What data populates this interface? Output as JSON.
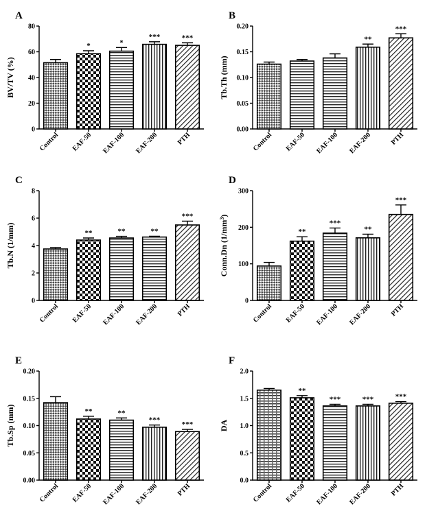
{
  "chart_data": [
    {
      "letter": "A",
      "type": "bar",
      "ylabel": "BV/TV (%)",
      "ylim": [
        0,
        80
      ],
      "yticks": [
        "0",
        "20",
        "40",
        "60",
        "80"
      ],
      "categories": [
        "Control",
        "EAF-50",
        "EAF-100",
        "EAF-200",
        "PTH"
      ],
      "values": [
        51.5,
        58.5,
        60.5,
        65.8,
        65.0
      ],
      "errors": [
        2.5,
        2.3,
        2.8,
        2.0,
        2.0
      ],
      "significance": [
        "",
        "*",
        "*",
        "***",
        "***"
      ],
      "patterns": [
        "pat-check",
        "pat-check-lg",
        "pat-hline",
        "pat-vline",
        "pat-diag"
      ]
    },
    {
      "letter": "B",
      "type": "bar",
      "ylabel": "Tb.Th (mm)",
      "ylim": [
        0,
        0.2
      ],
      "yticks": [
        "0.00",
        "0.05",
        "0.10",
        "0.15",
        "0.20"
      ],
      "categories": [
        "Control",
        "EAF-50",
        "EAF-100",
        "EAF-200",
        "PTH"
      ],
      "values": [
        0.126,
        0.132,
        0.138,
        0.159,
        0.177
      ],
      "errors": [
        0.004,
        0.003,
        0.008,
        0.006,
        0.008
      ],
      "significance": [
        "",
        "",
        "",
        "**",
        "***"
      ],
      "patterns": [
        "pat-check",
        "pat-hline",
        "pat-hline",
        "pat-vline",
        "pat-diag"
      ]
    },
    {
      "letter": "C",
      "type": "bar",
      "ylabel": "Tb.N (1/mm)",
      "ylim": [
        0,
        8
      ],
      "yticks": [
        "0",
        "2",
        "4",
        "6",
        "8"
      ],
      "categories": [
        "Control",
        "EAF-50",
        "EAF-100",
        "EAF-200",
        "PTH"
      ],
      "values": [
        3.75,
        4.4,
        4.55,
        4.62,
        5.5
      ],
      "errors": [
        0.1,
        0.15,
        0.12,
        0.06,
        0.28
      ],
      "significance": [
        "",
        "**",
        "**",
        "**",
        "***"
      ],
      "patterns": [
        "pat-check",
        "pat-check-lg",
        "pat-hline",
        "pat-hline",
        "pat-diag"
      ]
    },
    {
      "letter": "D",
      "type": "bar",
      "ylabel": "Conn.Dn (1/mm",
      "ylabel_sup": "3",
      "ylabel_end": ")",
      "ylim": [
        0,
        300
      ],
      "yticks": [
        "0",
        "100",
        "200",
        "300"
      ],
      "categories": [
        "Control",
        "EAF-50",
        "EAF-100",
        "EAF-200",
        "PTH"
      ],
      "values": [
        94,
        162,
        184,
        171,
        235
      ],
      "errors": [
        10,
        12,
        14,
        10,
        26
      ],
      "significance": [
        "",
        "**",
        "***",
        "**",
        "***"
      ],
      "patterns": [
        "pat-check",
        "pat-check-lg",
        "pat-hline",
        "pat-vline",
        "pat-diag"
      ]
    },
    {
      "letter": "E",
      "type": "bar",
      "ylabel": "Tb.Sp (mm)",
      "ylim": [
        0,
        0.2
      ],
      "yticks": [
        "0.00",
        "0.05",
        "0.10",
        "0.15",
        "0.20"
      ],
      "categories": [
        "Control",
        "EAF-50",
        "EAF-100",
        "EAF-200",
        "PTH"
      ],
      "values": [
        0.142,
        0.112,
        0.11,
        0.097,
        0.089
      ],
      "errors": [
        0.011,
        0.005,
        0.004,
        0.004,
        0.004
      ],
      "significance": [
        "",
        "**",
        "**",
        "***",
        "***"
      ],
      "patterns": [
        "pat-check",
        "pat-check-lg",
        "pat-hline",
        "pat-vline",
        "pat-diag"
      ]
    },
    {
      "letter": "F",
      "type": "bar",
      "ylabel": "DA",
      "ylim": [
        0,
        2.0
      ],
      "yticks": [
        "0.0",
        "0.5",
        "1.0",
        "1.5",
        "2.0"
      ],
      "categories": [
        "Control",
        "EAF-50",
        "EAF-100",
        "EAF-200",
        "PTH"
      ],
      "values": [
        1.65,
        1.51,
        1.36,
        1.36,
        1.41
      ],
      "errors": [
        0.03,
        0.04,
        0.03,
        0.03,
        0.03
      ],
      "significance": [
        "",
        "**",
        "***",
        "***",
        "***"
      ],
      "patterns": [
        "pat-hcheck",
        "pat-check-lg",
        "pat-hline",
        "pat-vline",
        "pat-diag"
      ]
    }
  ]
}
